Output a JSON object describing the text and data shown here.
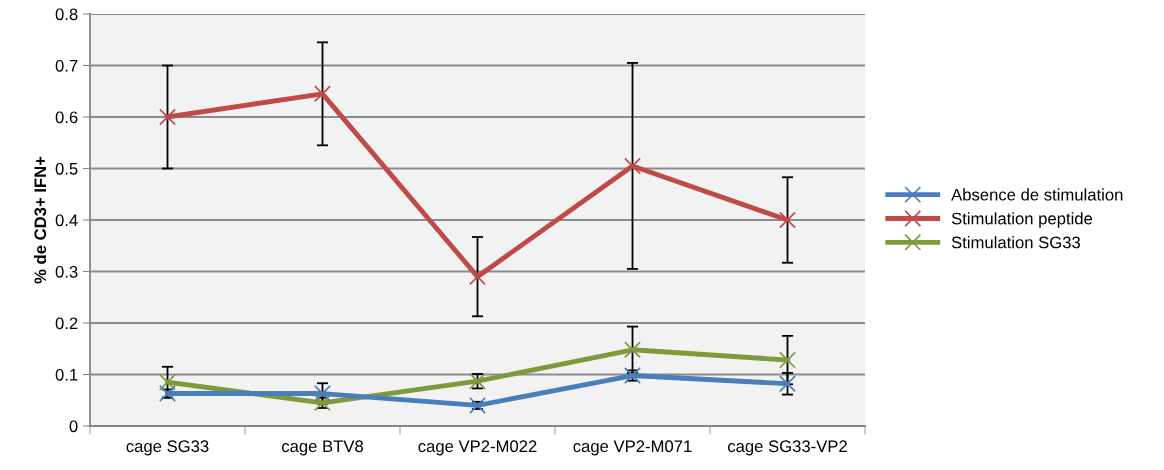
{
  "chart_data": {
    "type": "line",
    "ylabel": "% de CD3+ IFN+",
    "categories": [
      "cage SG33",
      "cage BTV8",
      "cage VP2-M022",
      "cage VP2-M071",
      "cage SG33-VP2"
    ],
    "series": [
      {
        "name": "Absence de stimulation",
        "color": "#4a7ebb",
        "values": [
          0.063,
          0.063,
          0.04,
          0.098,
          0.082
        ],
        "errors": [
          0.008,
          0.02,
          0.007,
          0.01,
          0.021
        ]
      },
      {
        "name": "Stimulation peptide",
        "color": "#be4b48",
        "values": [
          0.6,
          0.645,
          0.29,
          0.505,
          0.4
        ],
        "errors": [
          0.1,
          0.1,
          0.077,
          0.2,
          0.083
        ]
      },
      {
        "name": "Stimulation SG33",
        "color": "#7d9a3c",
        "values": [
          0.085,
          0.045,
          0.087,
          0.148,
          0.128
        ],
        "errors": [
          0.03,
          0.01,
          0.014,
          0.045,
          0.047
        ]
      }
    ],
    "ylim": [
      0,
      0.8
    ],
    "yticks": [
      0,
      0.1,
      0.2,
      0.3,
      0.4,
      0.5,
      0.6,
      0.7,
      0.8
    ],
    "grid": "y",
    "legend": "right",
    "marker": "cross",
    "line_style": "solid"
  }
}
